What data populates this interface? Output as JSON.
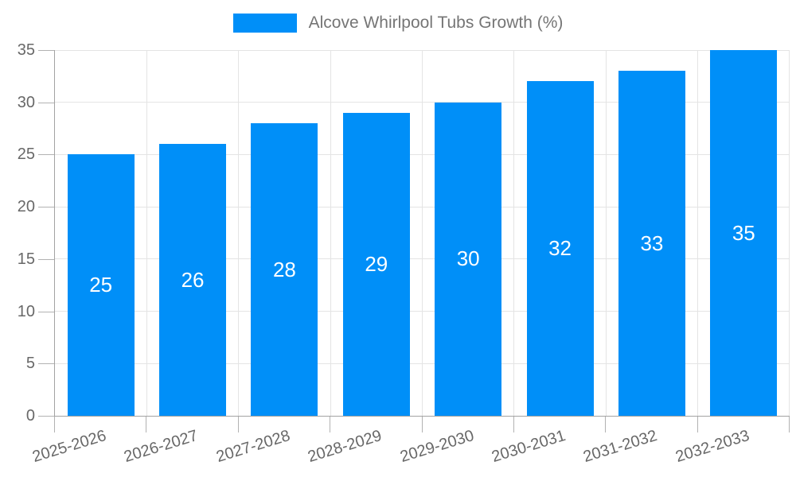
{
  "legend": {
    "series_label": "Alcove Whirlpool Tubs Growth (%)"
  },
  "chart_data": {
    "type": "bar",
    "title": "Alcove Whirlpool Tubs Growth (%)",
    "categories": [
      "2025-2026",
      "2026-2027",
      "2027-2028",
      "2028-2029",
      "2029-2030",
      "2030-2031",
      "2031-2032",
      "2032-2033"
    ],
    "values": [
      25,
      26,
      28,
      29,
      30,
      32,
      33,
      35
    ],
    "data_labels": [
      "25",
      "26",
      "28",
      "29",
      "30",
      "32",
      "33",
      "35"
    ],
    "xlabel": "",
    "ylabel": "",
    "ylim": [
      0,
      35
    ],
    "ytick_step": 5,
    "ytick_labels": [
      "0",
      "5",
      "10",
      "15",
      "20",
      "25",
      "30",
      "35"
    ],
    "grid": true,
    "legend_position": "top",
    "colors": {
      "bar": "#008FF8",
      "grid": "#e4e4e4",
      "axis": "#a2a2a2",
      "tick_mark": "#b2b2b2",
      "tick_text": "#686868",
      "legend_text": "#757575",
      "data_label": "#ffffff",
      "background": "#ffffff"
    }
  }
}
